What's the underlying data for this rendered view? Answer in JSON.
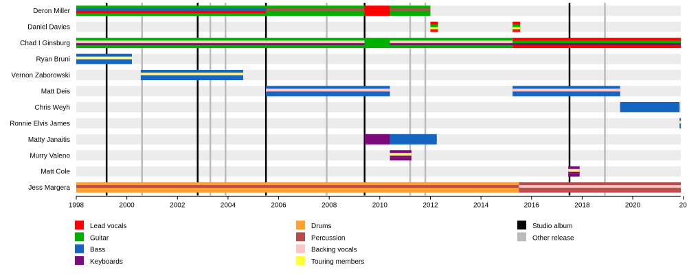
{
  "chart_data": {
    "type": "timeline",
    "title": "",
    "xlim": [
      1998,
      2021.9
    ],
    "x_ticks": [
      1998,
      2000,
      2002,
      2004,
      2006,
      2008,
      2010,
      2012,
      2014,
      2016,
      2018,
      2020,
      2022
    ],
    "tick_labels": [
      "1998",
      "2000",
      "2002",
      "2004",
      "2006",
      "2008",
      "2010",
      "2012",
      "2014",
      "2016",
      "2018",
      "2020",
      "20"
    ],
    "colors": {
      "lead_vocals": "#ff0000",
      "guitar": "#00b000",
      "bass": "#1565c0",
      "keyboards": "#7b0a7b",
      "drums": "#ffa030",
      "percussion": "#b84c4c",
      "backing_vocals": "#ffc4c4",
      "touring": "#ffff33",
      "touring_light": "#fff08a",
      "studio_album": "#000000",
      "other_release": "#bbbbbb"
    },
    "members": [
      {
        "name": "Deron Miller",
        "stints": [
          {
            "start": 1998.0,
            "end": 2005.5,
            "roles": [
              "guitar",
              "bass",
              "lead_vocals"
            ]
          },
          {
            "start": 2005.5,
            "end": 2009.4,
            "roles": [
              "guitar",
              "percussion",
              "guitar"
            ]
          },
          {
            "start": 2009.4,
            "end": 2010.4,
            "roles": [
              "lead_vocals",
              "lead_vocals",
              "lead_vocals"
            ]
          },
          {
            "start": 2010.4,
            "end": 2012.0,
            "roles": [
              "guitar",
              "percussion",
              "guitar"
            ]
          }
        ]
      },
      {
        "name": "Daniel Davies",
        "stints": [
          {
            "start": 2012.0,
            "end": 2012.3,
            "roles": [
              "lead_vocals",
              "guitar",
              "touring"
            ]
          },
          {
            "start": 2015.25,
            "end": 2015.55,
            "roles": [
              "lead_vocals",
              "guitar",
              "touring"
            ]
          }
        ]
      },
      {
        "name": "Chad I Ginsburg",
        "stints": [
          {
            "start": 1998.0,
            "end": 2005.5,
            "roles": [
              "guitar",
              "backing_vocals",
              "keyboards"
            ]
          },
          {
            "start": 2005.5,
            "end": 2009.4,
            "roles": [
              "guitar",
              "backing_vocals",
              "keyboards"
            ]
          },
          {
            "start": 2009.4,
            "end": 2010.4,
            "roles": [
              "guitar",
              "guitar",
              "guitar"
            ]
          },
          {
            "start": 2010.4,
            "end": 2015.25,
            "roles": [
              "guitar",
              "backing_vocals",
              "keyboards"
            ]
          },
          {
            "start": 2015.25,
            "end": 2021.9,
            "roles": [
              "lead_vocals",
              "guitar",
              "keyboards"
            ]
          }
        ]
      },
      {
        "name": "Ryan Bruni",
        "stints": [
          {
            "start": 1998.0,
            "end": 2000.2,
            "roles": [
              "bass",
              "touring_light",
              "bass"
            ]
          }
        ]
      },
      {
        "name": "Vernon Zaborowski",
        "stints": [
          {
            "start": 2000.55,
            "end": 2004.6,
            "roles": [
              "bass",
              "touring_light",
              "bass"
            ]
          }
        ]
      },
      {
        "name": "Matt Deis",
        "stints": [
          {
            "start": 2005.5,
            "end": 2010.4,
            "roles": [
              "bass",
              "backing_vocals",
              "bass"
            ]
          },
          {
            "start": 2015.25,
            "end": 2019.5,
            "roles": [
              "bass",
              "backing_vocals",
              "bass"
            ]
          }
        ]
      },
      {
        "name": "Chris Weyh",
        "stints": [
          {
            "start": 2019.5,
            "end": 2021.85,
            "roles": [
              "bass",
              "bass",
              "bass"
            ]
          }
        ]
      },
      {
        "name": "Ronnie Elvis James",
        "stints": [
          {
            "start": 2021.85,
            "end": 2021.9,
            "roles": [
              "bass",
              "touring_light",
              "bass"
            ]
          }
        ]
      },
      {
        "name": "Matty Janaitis",
        "stints": [
          {
            "start": 2009.4,
            "end": 2010.4,
            "roles": [
              "keyboards",
              "keyboards",
              "keyboards"
            ]
          },
          {
            "start": 2010.4,
            "end": 2012.25,
            "roles": [
              "bass",
              "bass",
              "bass"
            ]
          }
        ]
      },
      {
        "name": "Murry Valeno",
        "stints": [
          {
            "start": 2010.4,
            "end": 2011.25,
            "roles": [
              "keyboards",
              "touring_light",
              "keyboards"
            ]
          }
        ]
      },
      {
        "name": "Matt Cole",
        "stints": [
          {
            "start": 2017.45,
            "end": 2017.9,
            "roles": [
              "keyboards",
              "touring_light",
              "keyboards"
            ]
          }
        ]
      },
      {
        "name": "Jess Margera",
        "stints": [
          {
            "start": 1998.0,
            "end": 2015.5,
            "roles": [
              "drums",
              "percussion",
              "drums"
            ]
          },
          {
            "start": 2015.5,
            "end": 2021.9,
            "roles": [
              "percussion",
              "backing_vocals",
              "percussion"
            ]
          }
        ]
      }
    ],
    "studio_albums": [
      1999.2,
      2002.8,
      2005.5,
      2009.4,
      2017.5
    ],
    "other_releases": [
      2000.6,
      2003.3,
      2003.9,
      2007.9,
      2011.2,
      2011.8,
      2018.9
    ],
    "legend": [
      {
        "label": "Lead vocals",
        "color": "lead_vocals"
      },
      {
        "label": "Guitar",
        "color": "guitar"
      },
      {
        "label": "Bass",
        "color": "bass"
      },
      {
        "label": "Keyboards",
        "color": "keyboards"
      },
      {
        "label": "Drums",
        "color": "drums"
      },
      {
        "label": "Percussion",
        "color": "percussion"
      },
      {
        "label": "Backing vocals",
        "color": "backing_vocals"
      },
      {
        "label": "Touring members",
        "color": "touring"
      },
      {
        "label": "Studio album",
        "color": "studio_album"
      },
      {
        "label": "Other release",
        "color": "other_release"
      }
    ]
  }
}
